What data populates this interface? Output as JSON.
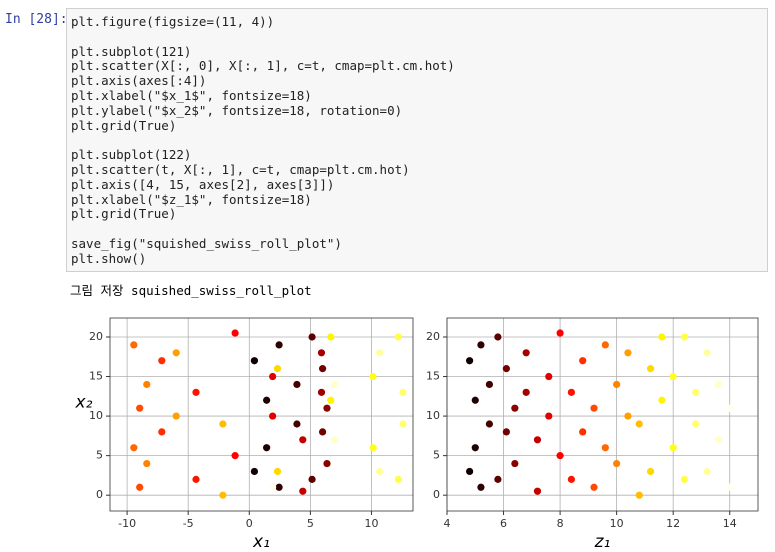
{
  "cell": {
    "prompt": "In [28]:",
    "code_blocks": [
      [
        "plt.figure(figsize=(11, 4))"
      ],
      [
        "plt.subplot(121)",
        "plt.scatter(X[:, 0], X[:, 1], c=t, cmap=plt.cm.hot)",
        "plt.axis(axes[:4])",
        "plt.xlabel(\"$x_1$\", fontsize=18)",
        "plt.ylabel(\"$x_2$\", fontsize=18, rotation=0)",
        "plt.grid(True)"
      ],
      [
        "plt.subplot(122)",
        "plt.scatter(t, X[:, 1], c=t, cmap=plt.cm.hot)",
        "plt.axis([4, 15, axes[2], axes[3]])",
        "plt.xlabel(\"$z_1$\", fontsize=18)",
        "plt.grid(True)"
      ],
      [
        "save_fig(\"squished_swiss_roll_plot\")",
        "plt.show()"
      ]
    ],
    "output": "그림 저장 squished_swiss_roll_plot"
  },
  "chart_data": [
    {
      "type": "scatter",
      "xlabel": "x₁",
      "ylabel": "x₂",
      "colormap": "hot",
      "clim": [
        4.71,
        14.14
      ],
      "grid": true,
      "xlim": [
        -11.4,
        13.4
      ],
      "ylim": [
        -2,
        22.4
      ],
      "xticks": [
        -10,
        -5,
        0,
        5,
        10
      ],
      "yticks": [
        0,
        5,
        10,
        15,
        20
      ],
      "x": [
        0.42,
        0.42,
        1.42,
        1.42,
        2.44,
        2.44,
        3.9,
        3.9,
        5.14,
        5.14,
        6.0,
        6.0,
        6.36,
        6.36,
        5.91,
        5.91,
        4.38,
        4.38,
        1.91,
        1.91,
        -1.16,
        -1.16,
        -4.36,
        -4.36,
        -7.16,
        -7.16,
        -8.97,
        -8.97,
        -9.45,
        -9.45,
        -8.39,
        -8.39,
        -5.98,
        -5.98,
        -2.16,
        -2.16,
        2.31,
        2.31,
        6.67,
        6.67,
        10.13,
        10.13,
        12.2,
        12.2,
        12.58,
        12.58,
        10.67,
        10.67,
        6.97,
        6.97,
        1.91,
        1.91
      ],
      "y": [
        3,
        17,
        12,
        6,
        19,
        1,
        9,
        14,
        2,
        20,
        16,
        8,
        11,
        4,
        18,
        13,
        7,
        0.5,
        15,
        10,
        5,
        20.5,
        13,
        2,
        8,
        17,
        1,
        11,
        19,
        6,
        4,
        14,
        10,
        18,
        0,
        9,
        16,
        3,
        12,
        20,
        6,
        15,
        20,
        2,
        9,
        13,
        3,
        18,
        14,
        7,
        11,
        1
      ],
      "c": [
        4.8,
        4.8,
        5.0,
        5.0,
        5.2,
        5.2,
        5.5,
        5.5,
        5.8,
        5.8,
        6.1,
        6.1,
        6.4,
        6.4,
        6.8,
        6.8,
        7.2,
        7.2,
        7.6,
        7.6,
        8.0,
        8.0,
        8.4,
        8.4,
        8.8,
        8.8,
        9.2,
        9.2,
        9.6,
        9.6,
        10.0,
        10.0,
        10.4,
        10.4,
        10.8,
        10.8,
        11.2,
        11.2,
        11.6,
        11.6,
        12.0,
        12.0,
        12.4,
        12.4,
        12.8,
        12.8,
        13.2,
        13.2,
        13.6,
        13.6,
        14.0,
        14.0
      ]
    },
    {
      "type": "scatter",
      "xlabel": "z₁",
      "colormap": "hot",
      "clim": [
        4.71,
        14.14
      ],
      "grid": true,
      "xlim": [
        4,
        15
      ],
      "ylim": [
        -2,
        22.4
      ],
      "xticks": [
        4,
        6,
        8,
        10,
        12,
        14
      ],
      "yticks": [
        0,
        5,
        10,
        15,
        20
      ],
      "x": [
        4.8,
        4.8,
        5.0,
        5.0,
        5.2,
        5.2,
        5.5,
        5.5,
        5.8,
        5.8,
        6.1,
        6.1,
        6.4,
        6.4,
        6.8,
        6.8,
        7.2,
        7.2,
        7.6,
        7.6,
        8.0,
        8.0,
        8.4,
        8.4,
        8.8,
        8.8,
        9.2,
        9.2,
        9.6,
        9.6,
        10.0,
        10.0,
        10.4,
        10.4,
        10.8,
        10.8,
        11.2,
        11.2,
        11.6,
        11.6,
        12.0,
        12.0,
        12.4,
        12.4,
        12.8,
        12.8,
        13.2,
        13.2,
        13.6,
        13.6,
        14.0,
        14.0
      ],
      "y": [
        3,
        17,
        12,
        6,
        19,
        1,
        9,
        14,
        2,
        20,
        16,
        8,
        11,
        4,
        18,
        13,
        7,
        0.5,
        15,
        10,
        5,
        20.5,
        13,
        2,
        8,
        17,
        1,
        11,
        19,
        6,
        4,
        14,
        10,
        18,
        0,
        9,
        16,
        3,
        12,
        20,
        6,
        15,
        20,
        2,
        9,
        13,
        3,
        18,
        14,
        7,
        11,
        1
      ],
      "c": [
        4.8,
        4.8,
        5.0,
        5.0,
        5.2,
        5.2,
        5.5,
        5.5,
        5.8,
        5.8,
        6.1,
        6.1,
        6.4,
        6.4,
        6.8,
        6.8,
        7.2,
        7.2,
        7.6,
        7.6,
        8.0,
        8.0,
        8.4,
        8.4,
        8.8,
        8.8,
        9.2,
        9.2,
        9.6,
        9.6,
        10.0,
        10.0,
        10.4,
        10.4,
        10.8,
        10.8,
        11.2,
        11.2,
        11.6,
        11.6,
        12.0,
        12.0,
        12.4,
        12.4,
        12.8,
        12.8,
        13.2,
        13.2,
        13.6,
        13.6,
        14.0,
        14.0
      ]
    }
  ]
}
